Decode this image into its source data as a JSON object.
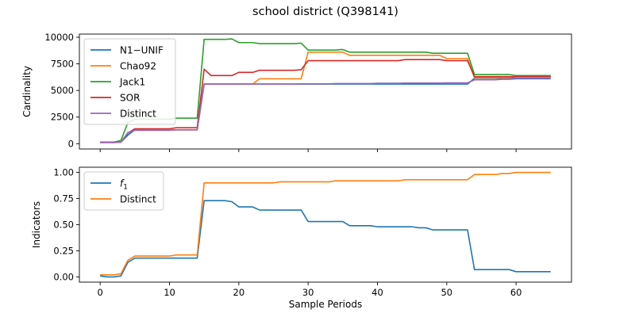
{
  "title": "school district (Q398141)",
  "chart_data": [
    {
      "type": "line",
      "ylabel": "Cardinality",
      "xlabel": "",
      "xlim": [
        -3,
        68
      ],
      "ylim": [
        -500,
        10300
      ],
      "x_ticks": [
        0,
        10,
        20,
        30,
        40,
        50,
        60
      ],
      "x_tick_labels_visible": false,
      "y_ticks": [
        0,
        2500,
        5000,
        7500,
        10000
      ],
      "y_tick_labels": [
        "0",
        "2500",
        "5000",
        "7500",
        "10000"
      ],
      "grid": false,
      "legend": "upper left",
      "series": [
        {
          "name": "N1−UNIF",
          "color": "#1f77b4",
          "values": [
            120,
            120,
            120,
            150,
            800,
            1300,
            1300,
            1300,
            1300,
            1300,
            1300,
            1300,
            1300,
            1300,
            1300,
            5600,
            5600,
            5600,
            5600,
            5600,
            5600,
            5600,
            5600,
            5600,
            5600,
            5600,
            5600,
            5600,
            5600,
            5600,
            5600,
            5600,
            5600,
            5600,
            5600,
            5600,
            5600,
            5600,
            5600,
            5600,
            5600,
            5600,
            5600,
            5600,
            5600,
            5600,
            5600,
            5600,
            5600,
            5600,
            5600,
            5600,
            5600,
            5600,
            6150,
            6150,
            6150,
            6150,
            6150,
            6150,
            6150,
            6150,
            6150,
            6150,
            6150,
            6150
          ]
        },
        {
          "name": "Chao92",
          "color": "#ff7f0e",
          "values": [
            120,
            120,
            120,
            150,
            1000,
            1300,
            1300,
            1300,
            1300,
            1300,
            1300,
            1300,
            1300,
            1300,
            1300,
            5600,
            5600,
            5600,
            5600,
            5600,
            5600,
            5600,
            5600,
            6100,
            6100,
            6100,
            6100,
            6100,
            6100,
            6100,
            8600,
            8600,
            8600,
            8600,
            8600,
            8600,
            8300,
            8300,
            8300,
            8300,
            8300,
            8300,
            8300,
            8300,
            8300,
            8300,
            8300,
            8300,
            8300,
            8300,
            8000,
            8000,
            8000,
            8000,
            6200,
            6200,
            6200,
            6200,
            6200,
            6200,
            6300,
            6300,
            6300,
            6300,
            6300,
            6300
          ]
        },
        {
          "name": "Jack1",
          "color": "#2ca02c",
          "values": [
            150,
            150,
            150,
            300,
            2000,
            2300,
            2300,
            2300,
            2300,
            2300,
            2300,
            2400,
            2400,
            2400,
            2400,
            9800,
            9800,
            9800,
            9800,
            9850,
            9500,
            9500,
            9500,
            9400,
            9400,
            9400,
            9400,
            9400,
            9400,
            9450,
            8800,
            8800,
            8800,
            8800,
            8800,
            8850,
            8600,
            8600,
            8600,
            8600,
            8600,
            8600,
            8600,
            8600,
            8600,
            8600,
            8600,
            8600,
            8500,
            8500,
            8500,
            8500,
            8500,
            8500,
            6500,
            6500,
            6500,
            6500,
            6500,
            6500,
            6400,
            6400,
            6400,
            6400,
            6400,
            6400
          ]
        },
        {
          "name": "SOR",
          "color": "#d62728",
          "values": [
            120,
            120,
            120,
            150,
            1000,
            1400,
            1400,
            1400,
            1400,
            1400,
            1400,
            1500,
            1500,
            1500,
            1500,
            7000,
            6400,
            6400,
            6400,
            6400,
            6700,
            6700,
            6700,
            6900,
            6900,
            6900,
            6900,
            6900,
            6900,
            6950,
            7800,
            7800,
            7800,
            7800,
            7800,
            7800,
            7800,
            7800,
            7800,
            7800,
            7800,
            7800,
            7800,
            7800,
            7900,
            7900,
            7900,
            7900,
            7900,
            7900,
            7800,
            7800,
            7800,
            7800,
            6300,
            6300,
            6300,
            6300,
            6300,
            6300,
            6300,
            6300,
            6300,
            6300,
            6300,
            6300
          ]
        },
        {
          "name": "Distinct",
          "color": "#9467bd",
          "values": [
            100,
            100,
            100,
            150,
            1050,
            1250,
            1250,
            1250,
            1250,
            1250,
            1250,
            1300,
            1300,
            1300,
            1300,
            5600,
            5600,
            5600,
            5600,
            5600,
            5600,
            5600,
            5600,
            5600,
            5600,
            5600,
            5600,
            5600,
            5600,
            5620,
            5620,
            5620,
            5620,
            5620,
            5650,
            5650,
            5650,
            5650,
            5650,
            5650,
            5680,
            5680,
            5680,
            5680,
            5700,
            5700,
            5700,
            5700,
            5700,
            5700,
            5720,
            5720,
            5720,
            5720,
            6000,
            6000,
            6000,
            6000,
            6050,
            6050,
            6100,
            6100,
            6100,
            6100,
            6100,
            6100
          ]
        }
      ]
    },
    {
      "type": "line",
      "ylabel": "Indicators",
      "xlabel": "Sample Periods",
      "xlim": [
        -3,
        68
      ],
      "ylim": [
        -0.05,
        1.05
      ],
      "x_ticks": [
        0,
        10,
        20,
        30,
        40,
        50,
        60
      ],
      "x_tick_labels": [
        "0",
        "10",
        "20",
        "30",
        "40",
        "50",
        "60"
      ],
      "y_ticks": [
        0.0,
        0.25,
        0.5,
        0.75,
        1.0
      ],
      "y_tick_labels": [
        "0.00",
        "0.25",
        "0.50",
        "0.75",
        "1.00"
      ],
      "grid": false,
      "legend": "upper left",
      "series": [
        {
          "name": "f1",
          "color": "#1f77b4",
          "values": [
            0.01,
            0.0,
            0.0,
            0.01,
            0.14,
            0.18,
            0.18,
            0.18,
            0.18,
            0.18,
            0.18,
            0.18,
            0.18,
            0.18,
            0.18,
            0.73,
            0.73,
            0.73,
            0.73,
            0.72,
            0.67,
            0.67,
            0.67,
            0.64,
            0.64,
            0.64,
            0.64,
            0.64,
            0.64,
            0.64,
            0.53,
            0.53,
            0.53,
            0.53,
            0.53,
            0.53,
            0.49,
            0.49,
            0.49,
            0.49,
            0.48,
            0.48,
            0.48,
            0.48,
            0.48,
            0.48,
            0.47,
            0.47,
            0.45,
            0.45,
            0.45,
            0.45,
            0.45,
            0.45,
            0.07,
            0.07,
            0.07,
            0.07,
            0.07,
            0.07,
            0.05,
            0.05,
            0.05,
            0.05,
            0.05,
            0.05
          ]
        },
        {
          "name": "Distinct",
          "color": "#ff7f0e",
          "values": [
            0.02,
            0.02,
            0.02,
            0.03,
            0.16,
            0.2,
            0.2,
            0.2,
            0.2,
            0.2,
            0.2,
            0.21,
            0.21,
            0.21,
            0.21,
            0.9,
            0.9,
            0.9,
            0.9,
            0.9,
            0.9,
            0.9,
            0.9,
            0.9,
            0.9,
            0.9,
            0.91,
            0.91,
            0.91,
            0.91,
            0.91,
            0.91,
            0.91,
            0.91,
            0.92,
            0.92,
            0.92,
            0.92,
            0.92,
            0.92,
            0.92,
            0.92,
            0.92,
            0.92,
            0.93,
            0.93,
            0.93,
            0.93,
            0.93,
            0.93,
            0.93,
            0.93,
            0.93,
            0.93,
            0.98,
            0.98,
            0.98,
            0.98,
            0.99,
            0.99,
            1.0,
            1.0,
            1.0,
            1.0,
            1.0,
            1.0
          ]
        }
      ]
    }
  ]
}
